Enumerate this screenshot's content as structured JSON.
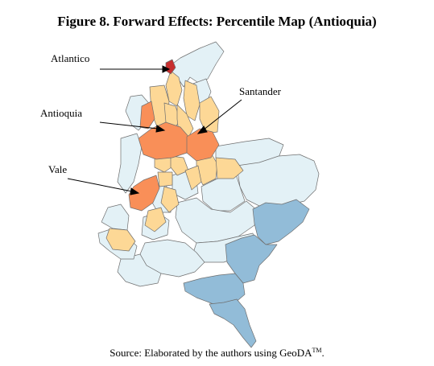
{
  "figure": {
    "title": "Figure 8. Forward Effects: Percentile Map (Antioquia)"
  },
  "map": {
    "colors": {
      "top": "#e8683a",
      "high": "#f98f58",
      "mid": "#fdd896",
      "low": "#e3f1f6",
      "bottom": "#92bcd8",
      "border": "#6f6f6f",
      "darkest": "#c72e2e"
    },
    "labels": {
      "atlantico": "Atlantico",
      "antioquia": "Antioquia",
      "santander": "Santander",
      "vale": "Vale"
    }
  },
  "caption": {
    "text": "Source: Elaborated by the authors using GeoDA",
    "superscript": "TM",
    "suffix": "."
  }
}
